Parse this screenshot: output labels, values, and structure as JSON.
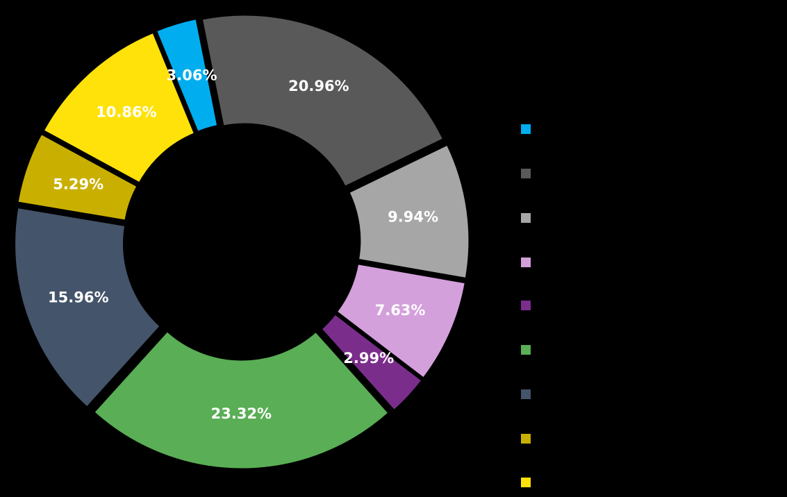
{
  "chart_data": {
    "type": "pie",
    "variant": "donut",
    "legend_title": "",
    "legend_position": "right",
    "slices": [
      {
        "label": "",
        "value": 3.06,
        "text": "3.06%",
        "color": "#00aeef"
      },
      {
        "label": "",
        "value": 20.96,
        "text": "20.96%",
        "color": "#595959"
      },
      {
        "label": "",
        "value": 9.94,
        "text": "9.94%",
        "color": "#a6a6a6"
      },
      {
        "label": "",
        "value": 7.63,
        "text": "7.63%",
        "color": "#d4a0dc"
      },
      {
        "label": "",
        "value": 2.99,
        "text": "2.99%",
        "color": "#7b2d8c"
      },
      {
        "label": "",
        "value": 23.32,
        "text": "23.32%",
        "color": "#5aae55"
      },
      {
        "label": "",
        "value": 15.96,
        "text": "15.96%",
        "color": "#44546a"
      },
      {
        "label": "",
        "value": 5.29,
        "text": "5.29%",
        "color": "#c9b000"
      },
      {
        "label": "",
        "value": 10.86,
        "text": "10.86%",
        "color": "#ffe20a"
      }
    ]
  }
}
